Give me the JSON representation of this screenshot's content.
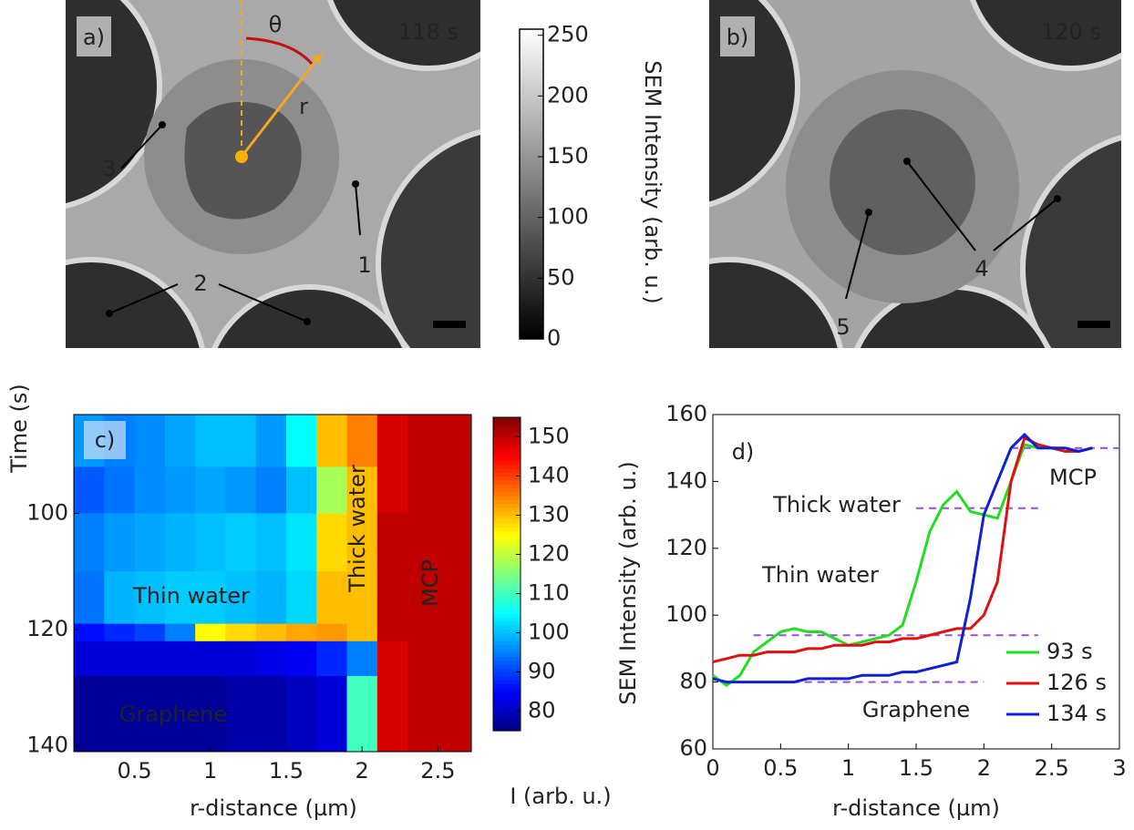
{
  "panels": {
    "a": {
      "label": "a)",
      "time": "118 s",
      "annotations": [
        "θ",
        "r",
        "3",
        "1",
        "2"
      ]
    },
    "b": {
      "label": "b)",
      "time": "120 s",
      "annotations": [
        "4",
        "5"
      ]
    }
  },
  "chart_data": [
    {
      "type": "colorbar",
      "label": "SEM Intensity (arb. u.)",
      "colormap": "gray",
      "ylim": [
        0,
        255
      ],
      "yticks": [
        0,
        50,
        100,
        150,
        200,
        250
      ]
    },
    {
      "type": "heatmap",
      "panel_label": "c)",
      "xlabel": "r-distance (µm)",
      "ylabel": "Time (s)",
      "colormap": "jet",
      "xlim": [
        0.1,
        2.72
      ],
      "xticks": [
        0.5,
        1,
        1.5,
        2,
        2.5
      ],
      "ylim": [
        83,
        141
      ],
      "yticks": [
        100,
        120,
        140
      ],
      "xbins": [
        0.1,
        0.3,
        0.5,
        0.7,
        0.9,
        1.1,
        1.3,
        1.5,
        1.7,
        1.9,
        2.1,
        2.3,
        2.5,
        2.7
      ],
      "ybins": [
        83,
        92,
        100,
        110,
        119,
        122,
        128,
        141
      ],
      "z": [
        [
          97,
          95,
          96,
          98,
          100,
          100,
          97,
          105,
          130,
          135,
          148,
          150,
          150
        ],
        [
          92,
          94,
          96,
          97,
          98,
          97,
          95,
          100,
          118,
          130,
          148,
          150,
          150
        ],
        [
          95,
          97,
          98,
          99,
          100,
          101,
          100,
          103,
          128,
          130,
          150,
          150,
          150
        ],
        [
          94,
          99,
          100,
          101,
          101,
          100,
          99,
          102,
          130,
          130,
          150,
          150,
          150
        ],
        [
          86,
          88,
          90,
          95,
          125,
          128,
          130,
          132,
          133,
          130,
          150,
          150,
          150
        ],
        [
          82,
          82,
          82,
          82,
          82,
          82,
          83,
          84,
          88,
          95,
          148,
          150,
          150
        ],
        [
          77,
          77,
          77,
          77,
          77,
          78,
          78,
          80,
          82,
          110,
          148,
          150,
          150
        ]
      ],
      "annotations": [
        "Thin water",
        "Graphene",
        "Thick water",
        "MCP"
      ],
      "colorbar": {
        "label": "I (arb. u.)",
        "clim": [
          75,
          155
        ],
        "ticks": [
          80,
          90,
          100,
          110,
          120,
          130,
          140,
          150
        ]
      }
    },
    {
      "type": "line",
      "panel_label": "d)",
      "xlabel": "r-distance (µm)",
      "ylabel": "SEM Intensity (arb. u.)",
      "xlim": [
        0,
        3
      ],
      "xticks": [
        0,
        0.5,
        1,
        1.5,
        2,
        2.5,
        3
      ],
      "ylim": [
        60,
        160
      ],
      "yticks": [
        60,
        80,
        100,
        120,
        140,
        160
      ],
      "x": [
        0,
        0.1,
        0.2,
        0.3,
        0.4,
        0.5,
        0.6,
        0.7,
        0.8,
        0.9,
        1,
        1.1,
        1.2,
        1.3,
        1.4,
        1.5,
        1.6,
        1.7,
        1.8,
        1.9,
        2,
        2.1,
        2.2,
        2.3,
        2.4,
        2.5,
        2.6,
        2.7,
        2.8
      ],
      "series": [
        {
          "name": "93 s",
          "color": "#22dd22",
          "values": [
            82,
            79,
            82,
            89,
            92,
            95,
            96,
            95,
            95,
            93,
            91,
            92,
            93,
            94,
            97,
            110,
            125,
            133,
            137,
            131,
            130,
            129,
            140,
            151,
            150,
            150,
            149,
            149,
            150
          ]
        },
        {
          "name": "126 s",
          "color": "#e01010",
          "values": [
            86,
            87,
            88,
            88,
            89,
            89,
            89,
            90,
            90,
            91,
            91,
            91,
            92,
            92,
            93,
            93,
            94,
            95,
            96,
            96,
            100,
            110,
            140,
            153,
            151,
            150,
            149,
            149,
            150
          ]
        },
        {
          "name": "134 s",
          "color": "#1020d0",
          "values": [
            81,
            80,
            80,
            80,
            80,
            80,
            80,
            81,
            81,
            81,
            81,
            82,
            82,
            82,
            83,
            83,
            84,
            85,
            86,
            105,
            130,
            140,
            150,
            154,
            150,
            150,
            150,
            149,
            150
          ]
        }
      ],
      "reference_lines": [
        {
          "value": 150,
          "x": [
            2.2,
            3
          ]
        },
        {
          "value": 132,
          "x": [
            1.5,
            2.4
          ]
        },
        {
          "value": 94,
          "x": [
            0.3,
            2.4
          ]
        },
        {
          "value": 80,
          "x": [
            0.3,
            2
          ]
        }
      ],
      "reference_color": "#9b4fd6",
      "annotations": [
        "Thick water",
        "Thin water",
        "Graphene",
        "MCP"
      ],
      "legend": "lower right"
    }
  ]
}
